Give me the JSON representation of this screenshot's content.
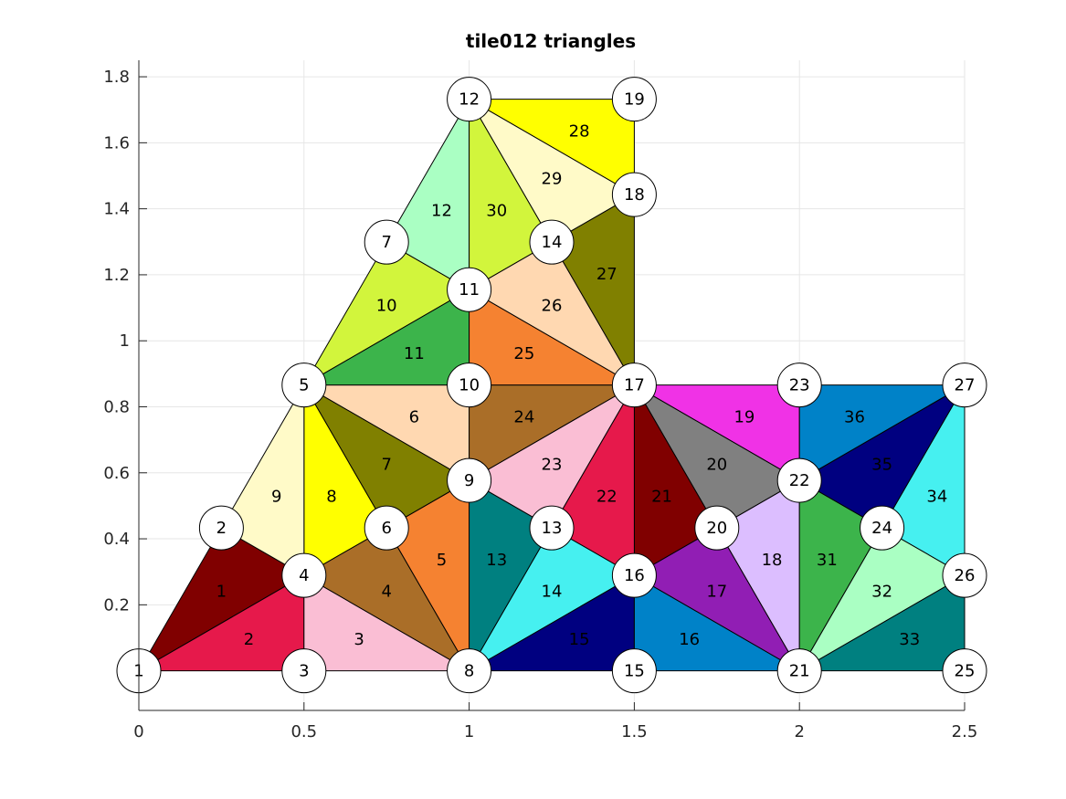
{
  "chart_data": {
    "type": "triangle_mesh",
    "title": "tile012 triangles",
    "xlim": [
      0,
      2.5
    ],
    "ylim": [
      -0.12,
      1.85
    ],
    "xticks": [
      0,
      0.5,
      1,
      1.5,
      2,
      2.5
    ],
    "xtick_labels": [
      "0",
      "0.5",
      "1",
      "1.5",
      "2",
      "2.5"
    ],
    "yticks": [
      0.2,
      0.4,
      0.6,
      0.8,
      1,
      1.2,
      1.4,
      1.6,
      1.8
    ],
    "ytick_labels": [
      "0.2",
      "0.4",
      "0.6",
      "0.8",
      "1",
      "1.2",
      "1.4",
      "1.6",
      "1.8"
    ],
    "grid": true,
    "nodes": [
      {
        "id": "1",
        "x": 0.0,
        "y": 0.0
      },
      {
        "id": "2",
        "x": 0.25,
        "y": 0.433
      },
      {
        "id": "3",
        "x": 0.5,
        "y": 0.0
      },
      {
        "id": "4",
        "x": 0.5,
        "y": 0.289
      },
      {
        "id": "5",
        "x": 0.5,
        "y": 0.866
      },
      {
        "id": "6",
        "x": 0.75,
        "y": 0.433
      },
      {
        "id": "7",
        "x": 0.75,
        "y": 1.299
      },
      {
        "id": "8",
        "x": 1.0,
        "y": 0.0
      },
      {
        "id": "9",
        "x": 1.0,
        "y": 0.577
      },
      {
        "id": "10",
        "x": 1.0,
        "y": 0.866
      },
      {
        "id": "11",
        "x": 1.0,
        "y": 1.155
      },
      {
        "id": "12",
        "x": 1.0,
        "y": 1.732
      },
      {
        "id": "13",
        "x": 1.25,
        "y": 0.433
      },
      {
        "id": "14",
        "x": 1.25,
        "y": 1.299
      },
      {
        "id": "15",
        "x": 1.5,
        "y": 0.0
      },
      {
        "id": "16",
        "x": 1.5,
        "y": 0.289
      },
      {
        "id": "17",
        "x": 1.5,
        "y": 0.866
      },
      {
        "id": "18",
        "x": 1.5,
        "y": 1.443
      },
      {
        "id": "19",
        "x": 1.5,
        "y": 1.732
      },
      {
        "id": "20",
        "x": 1.75,
        "y": 0.433
      },
      {
        "id": "21",
        "x": 2.0,
        "y": 0.0
      },
      {
        "id": "22",
        "x": 2.0,
        "y": 0.577
      },
      {
        "id": "23",
        "x": 2.0,
        "y": 0.866
      },
      {
        "id": "24",
        "x": 2.25,
        "y": 0.433
      },
      {
        "id": "25",
        "x": 2.5,
        "y": 0.0
      },
      {
        "id": "26",
        "x": 2.5,
        "y": 0.289
      },
      {
        "id": "27",
        "x": 2.5,
        "y": 0.866
      }
    ],
    "triangles": [
      {
        "id": "1",
        "nodes": [
          "1",
          "4",
          "2"
        ],
        "color": "#800000"
      },
      {
        "id": "2",
        "nodes": [
          "1",
          "3",
          "4"
        ],
        "color": "#e6194b"
      },
      {
        "id": "3",
        "nodes": [
          "3",
          "8",
          "4"
        ],
        "color": "#fabed4"
      },
      {
        "id": "4",
        "nodes": [
          "4",
          "8",
          "6"
        ],
        "color": "#aa6e28"
      },
      {
        "id": "5",
        "nodes": [
          "6",
          "8",
          "9"
        ],
        "color": "#f58231"
      },
      {
        "id": "6",
        "nodes": [
          "5",
          "9",
          "10"
        ],
        "color": "#ffd8b1"
      },
      {
        "id": "7",
        "nodes": [
          "5",
          "6",
          "9"
        ],
        "color": "#808000"
      },
      {
        "id": "8",
        "nodes": [
          "4",
          "6",
          "5"
        ],
        "color": "#ffff00"
      },
      {
        "id": "9",
        "nodes": [
          "2",
          "4",
          "5"
        ],
        "color": "#fffac8"
      },
      {
        "id": "10",
        "nodes": [
          "5",
          "11",
          "7"
        ],
        "color": "#d2f53c"
      },
      {
        "id": "11",
        "nodes": [
          "5",
          "10",
          "11"
        ],
        "color": "#3cb44b"
      },
      {
        "id": "12",
        "nodes": [
          "7",
          "11",
          "12"
        ],
        "color": "#aaffc3"
      },
      {
        "id": "13",
        "nodes": [
          "8",
          "13",
          "9"
        ],
        "color": "#008080"
      },
      {
        "id": "14",
        "nodes": [
          "8",
          "16",
          "13"
        ],
        "color": "#46f0f0"
      },
      {
        "id": "15",
        "nodes": [
          "8",
          "15",
          "16"
        ],
        "color": "#000080"
      },
      {
        "id": "16",
        "nodes": [
          "15",
          "21",
          "16"
        ],
        "color": "#0082c8"
      },
      {
        "id": "17",
        "nodes": [
          "16",
          "21",
          "20"
        ],
        "color": "#911eb4"
      },
      {
        "id": "18",
        "nodes": [
          "20",
          "21",
          "22"
        ],
        "color": "#dcbeff"
      },
      {
        "id": "19",
        "nodes": [
          "17",
          "22",
          "23"
        ],
        "color": "#f032e6"
      },
      {
        "id": "20",
        "nodes": [
          "17",
          "20",
          "22"
        ],
        "color": "#808080"
      },
      {
        "id": "21",
        "nodes": [
          "16",
          "20",
          "17"
        ],
        "color": "#800000"
      },
      {
        "id": "22",
        "nodes": [
          "13",
          "16",
          "17"
        ],
        "color": "#e6194b"
      },
      {
        "id": "23",
        "nodes": [
          "9",
          "13",
          "17"
        ],
        "color": "#fabed4"
      },
      {
        "id": "24",
        "nodes": [
          "9",
          "17",
          "10"
        ],
        "color": "#aa6e28"
      },
      {
        "id": "25",
        "nodes": [
          "10",
          "17",
          "11"
        ],
        "color": "#f58231"
      },
      {
        "id": "26",
        "nodes": [
          "11",
          "17",
          "14"
        ],
        "color": "#ffd8b1"
      },
      {
        "id": "27",
        "nodes": [
          "14",
          "17",
          "18"
        ],
        "color": "#808000"
      },
      {
        "id": "28",
        "nodes": [
          "12",
          "18",
          "19"
        ],
        "color": "#ffff00"
      },
      {
        "id": "29",
        "nodes": [
          "12",
          "14",
          "18"
        ],
        "color": "#fffac8"
      },
      {
        "id": "30",
        "nodes": [
          "11",
          "14",
          "12"
        ],
        "color": "#d2f53c"
      },
      {
        "id": "31",
        "nodes": [
          "21",
          "24",
          "22"
        ],
        "color": "#3cb44b"
      },
      {
        "id": "32",
        "nodes": [
          "21",
          "26",
          "24"
        ],
        "color": "#aaffc3"
      },
      {
        "id": "33",
        "nodes": [
          "21",
          "25",
          "26"
        ],
        "color": "#008080"
      },
      {
        "id": "34",
        "nodes": [
          "24",
          "26",
          "27"
        ],
        "color": "#46f0f0"
      },
      {
        "id": "35",
        "nodes": [
          "22",
          "24",
          "27"
        ],
        "color": "#000080"
      },
      {
        "id": "36",
        "nodes": [
          "22",
          "27",
          "23"
        ],
        "color": "#0082c8"
      }
    ]
  }
}
